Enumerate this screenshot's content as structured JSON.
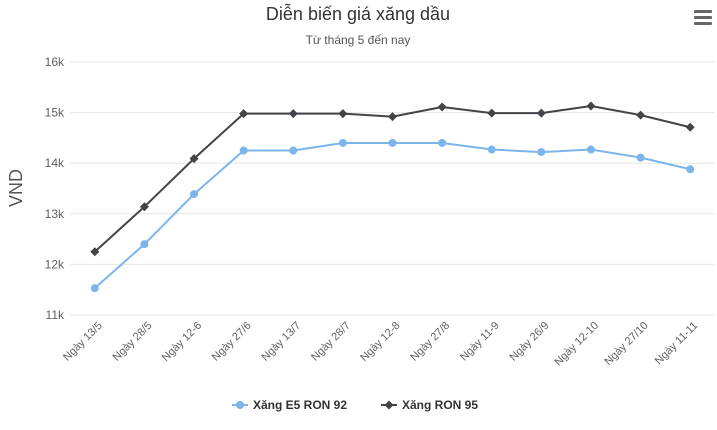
{
  "chart_data": {
    "type": "line",
    "title": "Diễn biến giá xăng dầu",
    "subtitle": "Từ tháng 5 đến nay",
    "xlabel": "",
    "ylabel": "VND",
    "categories": [
      "Ngày 13/5",
      "Ngày 28/5",
      "Ngày 12-6",
      "Ngày 27/6",
      "Ngày 13/7",
      "Ngày 28/7",
      "Ngày 12-8",
      "Ngày 27/8",
      "Ngày 11-9",
      "Ngày 26/9",
      "Ngày 12-10",
      "Ngày 27/10",
      "Ngày 11-11"
    ],
    "ylim": [
      11000,
      16000
    ],
    "yticks": [
      11000,
      12000,
      13000,
      14000,
      15000,
      16000
    ],
    "ytick_labels": [
      "11k",
      "12k",
      "13k",
      "14k",
      "15k",
      "16k"
    ],
    "grid": true,
    "legend_position": "bottom-center",
    "series": [
      {
        "name": "Xăng E5 RON 92",
        "color": "#7cb5ec",
        "marker": "circle",
        "values": [
          11530,
          12400,
          13390,
          14250,
          14250,
          14400,
          14400,
          14400,
          14270,
          14220,
          14270,
          14110,
          13880
        ]
      },
      {
        "name": "Xăng RON 95",
        "color": "#434348",
        "marker": "diamond",
        "values": [
          12250,
          13140,
          14090,
          14980,
          14980,
          14980,
          14920,
          15110,
          14990,
          14990,
          15130,
          14950,
          14710
        ]
      }
    ]
  },
  "menu": {
    "icon": "hamburger-menu-icon"
  }
}
